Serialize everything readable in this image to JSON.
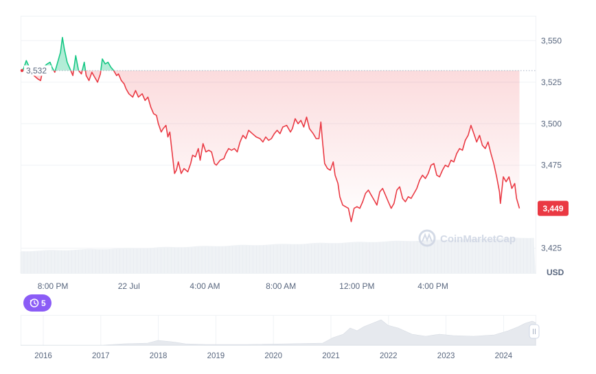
{
  "chart_data": {
    "type": "line",
    "currency_unit": "USD",
    "open_price": 3532,
    "open_price_label": "3,532",
    "last_price": 3449,
    "last_price_label": "3,449",
    "y_axis": {
      "min": 3410,
      "max": 3565,
      "ticks": [
        3550,
        3525,
        3500,
        3475,
        3425
      ],
      "tick_labels": [
        "3,550",
        "3,525",
        "3,500",
        "3,475",
        "3,425"
      ]
    },
    "x_axis": {
      "start_hour": 18.3,
      "end_hour": 45.4,
      "ticks": [
        20,
        24,
        28,
        32,
        36,
        40
      ],
      "tick_labels": [
        "8:00 PM",
        "22 Jul",
        "4:00 AM",
        "8:00 AM",
        "12:00 PM",
        "4:00 PM"
      ]
    },
    "series": [
      {
        "above_color": "#16c784",
        "below_color": "#ea3943",
        "points": [
          [
            18.3,
            3532
          ],
          [
            18.45,
            3533
          ],
          [
            18.6,
            3538
          ],
          [
            18.8,
            3533
          ],
          [
            19.0,
            3529
          ],
          [
            19.2,
            3527
          ],
          [
            19.35,
            3526
          ],
          [
            19.5,
            3534
          ],
          [
            19.7,
            3536
          ],
          [
            19.85,
            3537
          ],
          [
            19.95,
            3534
          ],
          [
            20.1,
            3531
          ],
          [
            20.25,
            3537
          ],
          [
            20.4,
            3543
          ],
          [
            20.5,
            3552
          ],
          [
            20.6,
            3545
          ],
          [
            20.75,
            3537
          ],
          [
            20.9,
            3533
          ],
          [
            21.05,
            3529
          ],
          [
            21.2,
            3541
          ],
          [
            21.35,
            3532
          ],
          [
            21.5,
            3530
          ],
          [
            21.65,
            3537
          ],
          [
            21.75,
            3529
          ],
          [
            21.9,
            3526
          ],
          [
            22.05,
            3531
          ],
          [
            22.2,
            3528
          ],
          [
            22.35,
            3525
          ],
          [
            22.5,
            3530
          ],
          [
            22.6,
            3539
          ],
          [
            22.75,
            3536
          ],
          [
            22.9,
            3537
          ],
          [
            23.05,
            3534
          ],
          [
            23.2,
            3532
          ],
          [
            23.35,
            3529
          ],
          [
            23.45,
            3530
          ],
          [
            23.6,
            3526
          ],
          [
            23.75,
            3524
          ],
          [
            23.85,
            3521
          ],
          [
            24.0,
            3518
          ],
          [
            24.2,
            3516
          ],
          [
            24.35,
            3520
          ],
          [
            24.5,
            3516
          ],
          [
            24.7,
            3518
          ],
          [
            24.85,
            3514
          ],
          [
            25.0,
            3516
          ],
          [
            25.15,
            3510
          ],
          [
            25.3,
            3506
          ],
          [
            25.45,
            3505
          ],
          [
            25.55,
            3500
          ],
          [
            25.7,
            3495
          ],
          [
            25.8,
            3497
          ],
          [
            25.95,
            3499
          ],
          [
            26.05,
            3492
          ],
          [
            26.15,
            3495
          ],
          [
            26.3,
            3480
          ],
          [
            26.4,
            3470
          ],
          [
            26.5,
            3472
          ],
          [
            26.6,
            3477
          ],
          [
            26.75,
            3470
          ],
          [
            26.9,
            3473
          ],
          [
            27.1,
            3471
          ],
          [
            27.25,
            3476
          ],
          [
            27.35,
            3481
          ],
          [
            27.5,
            3480
          ],
          [
            27.65,
            3485
          ],
          [
            27.75,
            3478
          ],
          [
            27.9,
            3488
          ],
          [
            28.05,
            3483
          ],
          [
            28.2,
            3484
          ],
          [
            28.35,
            3483
          ],
          [
            28.5,
            3476
          ],
          [
            28.6,
            3475
          ],
          [
            28.8,
            3478
          ],
          [
            29.0,
            3479
          ],
          [
            29.1,
            3482
          ],
          [
            29.25,
            3485
          ],
          [
            29.4,
            3484
          ],
          [
            29.55,
            3485
          ],
          [
            29.7,
            3483
          ],
          [
            29.85,
            3489
          ],
          [
            30.0,
            3493
          ],
          [
            30.15,
            3491
          ],
          [
            30.3,
            3496
          ],
          [
            30.5,
            3494
          ],
          [
            30.7,
            3492
          ],
          [
            30.9,
            3491
          ],
          [
            31.05,
            3489
          ],
          [
            31.2,
            3492
          ],
          [
            31.35,
            3490
          ],
          [
            31.5,
            3491
          ],
          [
            31.65,
            3494
          ],
          [
            31.8,
            3496
          ],
          [
            31.95,
            3494
          ],
          [
            32.1,
            3498
          ],
          [
            32.3,
            3499
          ],
          [
            32.5,
            3495
          ],
          [
            32.6,
            3497
          ],
          [
            32.75,
            3503
          ],
          [
            32.9,
            3500
          ],
          [
            33.05,
            3502
          ],
          [
            33.2,
            3498
          ],
          [
            33.35,
            3504
          ],
          [
            33.5,
            3497
          ],
          [
            33.7,
            3494
          ],
          [
            33.85,
            3491
          ],
          [
            34.0,
            3491
          ],
          [
            34.1,
            3501
          ],
          [
            34.2,
            3488
          ],
          [
            34.3,
            3476
          ],
          [
            34.45,
            3473
          ],
          [
            34.6,
            3472
          ],
          [
            34.75,
            3477
          ],
          [
            34.85,
            3469
          ],
          [
            35.0,
            3464
          ],
          [
            35.1,
            3456
          ],
          [
            35.25,
            3451
          ],
          [
            35.4,
            3450
          ],
          [
            35.55,
            3449
          ],
          [
            35.7,
            3441
          ],
          [
            35.85,
            3449
          ],
          [
            36.0,
            3450
          ],
          [
            36.15,
            3449
          ],
          [
            36.3,
            3453
          ],
          [
            36.45,
            3458
          ],
          [
            36.6,
            3460
          ],
          [
            36.75,
            3457
          ],
          [
            36.9,
            3454
          ],
          [
            37.05,
            3451
          ],
          [
            37.2,
            3459
          ],
          [
            37.35,
            3461
          ],
          [
            37.5,
            3457
          ],
          [
            37.65,
            3453
          ],
          [
            37.8,
            3449
          ],
          [
            37.95,
            3452
          ],
          [
            38.1,
            3460
          ],
          [
            38.25,
            3462
          ],
          [
            38.4,
            3455
          ],
          [
            38.55,
            3453
          ],
          [
            38.7,
            3456
          ],
          [
            38.85,
            3455
          ],
          [
            39.0,
            3458
          ],
          [
            39.15,
            3461
          ],
          [
            39.3,
            3466
          ],
          [
            39.45,
            3469
          ],
          [
            39.6,
            3467
          ],
          [
            39.75,
            3470
          ],
          [
            39.9,
            3475
          ],
          [
            40.05,
            3476
          ],
          [
            40.2,
            3469
          ],
          [
            40.35,
            3468
          ],
          [
            40.5,
            3472
          ],
          [
            40.65,
            3475
          ],
          [
            40.8,
            3474
          ],
          [
            40.95,
            3478
          ],
          [
            41.1,
            3477
          ],
          [
            41.25,
            3482
          ],
          [
            41.4,
            3485
          ],
          [
            41.55,
            3484
          ],
          [
            41.7,
            3490
          ],
          [
            41.85,
            3493
          ],
          [
            42.0,
            3499
          ],
          [
            42.15,
            3494
          ],
          [
            42.3,
            3489
          ],
          [
            42.45,
            3493
          ],
          [
            42.6,
            3487
          ],
          [
            42.75,
            3485
          ],
          [
            42.9,
            3489
          ],
          [
            43.05,
            3482
          ],
          [
            43.2,
            3476
          ],
          [
            43.35,
            3468
          ],
          [
            43.5,
            3459
          ],
          [
            43.55,
            3452
          ],
          [
            43.7,
            3468
          ],
          [
            43.85,
            3465
          ],
          [
            44.0,
            3468
          ],
          [
            44.15,
            3461
          ],
          [
            44.3,
            3464
          ],
          [
            44.4,
            3455
          ],
          [
            44.55,
            3449
          ]
        ]
      }
    ],
    "volume_bars": "light gray area at bottom of main chart",
    "navigator": {
      "years": [
        "2016",
        "2017",
        "2018",
        "2019",
        "2020",
        "2021",
        "2022",
        "2023",
        "2024"
      ]
    }
  },
  "badge": {
    "label": "5",
    "icon": "history-clock-icon",
    "color": "#8b5cf6"
  },
  "watermark": {
    "text": "CoinMarketCap"
  }
}
